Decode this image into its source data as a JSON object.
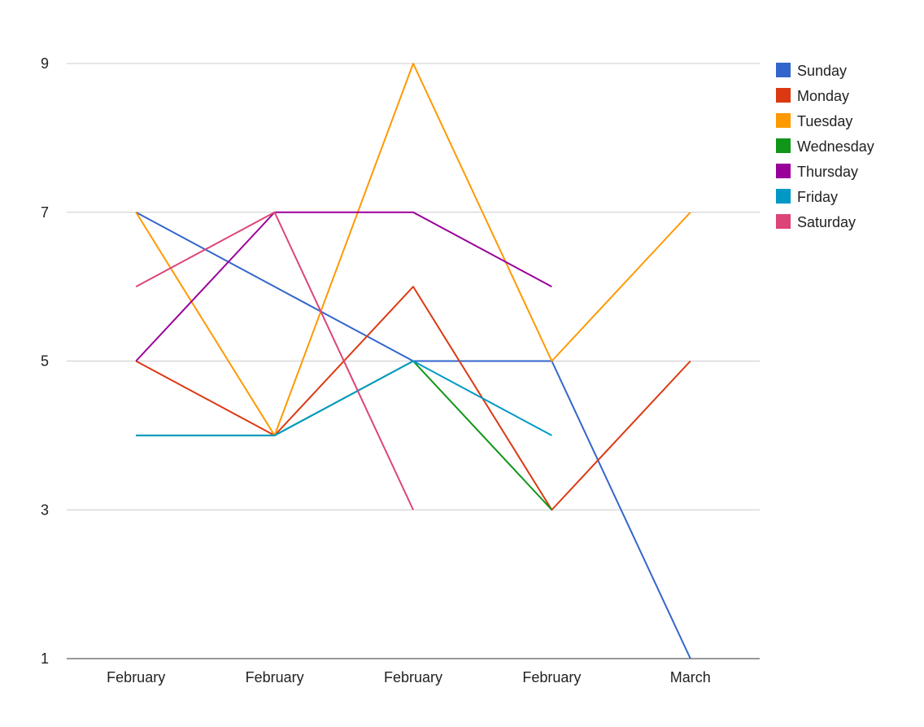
{
  "chart_data": {
    "type": "line",
    "title": "",
    "xlabel": "",
    "ylabel": "",
    "categories": [
      "February",
      "February",
      "February",
      "February",
      "March"
    ],
    "ylim": [
      1,
      9
    ],
    "yticks": [
      1,
      3,
      5,
      7,
      9
    ],
    "grid": true,
    "legend_position": "right",
    "series": [
      {
        "name": "Sunday",
        "color": "#3366cc",
        "values": [
          7,
          6,
          5,
          5,
          1
        ]
      },
      {
        "name": "Monday",
        "color": "#dc3912",
        "values": [
          5,
          4,
          6,
          3,
          5
        ]
      },
      {
        "name": "Tuesday",
        "color": "#ff9900",
        "values": [
          7,
          4,
          9,
          5,
          7
        ]
      },
      {
        "name": "Wednesday",
        "color": "#109618",
        "values": [
          4,
          4,
          5,
          3,
          null
        ]
      },
      {
        "name": "Thursday",
        "color": "#990099",
        "values": [
          5,
          7,
          7,
          6,
          null
        ]
      },
      {
        "name": "Friday",
        "color": "#0099c6",
        "values": [
          4,
          4,
          5,
          4,
          null
        ]
      },
      {
        "name": "Saturday",
        "color": "#dd4477",
        "values": [
          6,
          7,
          3,
          null,
          null
        ]
      }
    ]
  }
}
